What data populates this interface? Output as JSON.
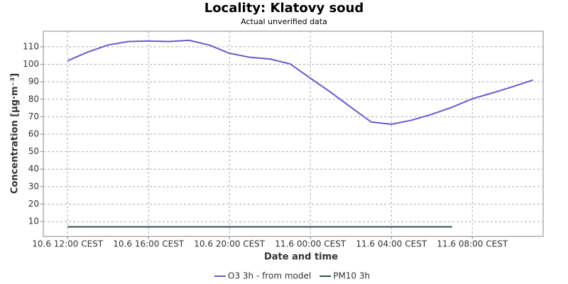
{
  "chart_data": {
    "type": "line",
    "title": "Locality: Klatovy soud",
    "subtitle": "Actual unverified data",
    "x_label": "Date and time",
    "y_label": "Concentration [µg·m⁻³]",
    "x": [
      0,
      1,
      2,
      3,
      4,
      5,
      6,
      7,
      8,
      9,
      10,
      11,
      12,
      13,
      14,
      15,
      16,
      17,
      18,
      19,
      20,
      21,
      22,
      23
    ],
    "xlim": [
      -1.2,
      23.5
    ],
    "xticks": [
      {
        "value": 0,
        "label": "10.6 12:00 CEST"
      },
      {
        "value": 4,
        "label": "10.6 16:00 CEST"
      },
      {
        "value": 8,
        "label": "10.6 20:00 CEST"
      },
      {
        "value": 12,
        "label": "11.6 00:00 CEST"
      },
      {
        "value": 16,
        "label": "11.6 04:00 CEST"
      },
      {
        "value": 20,
        "label": "11.6 08:00 CEST"
      }
    ],
    "ylim": [
      1.5,
      118.9
    ],
    "yticks": [
      10,
      20,
      30,
      40,
      50,
      60,
      70,
      80,
      90,
      100,
      110
    ],
    "grid": true,
    "legend": "bottom",
    "series": [
      {
        "name": "O3 3h - from model",
        "color": "#6a5acd",
        "values": [
          102,
          107,
          111,
          113,
          113.3,
          113,
          113.7,
          111,
          106.3,
          104,
          103,
          100.2,
          92,
          84,
          75.4,
          67,
          65.7,
          68,
          71.4,
          75.4,
          80.3,
          83.6,
          87.2,
          91
        ]
      },
      {
        "name": "PM10 3h",
        "color": "#2f4f4f",
        "values": [
          7,
          7,
          7,
          7,
          7,
          7,
          7,
          7,
          7,
          7,
          7,
          7,
          7,
          7,
          7,
          7,
          7,
          7,
          7,
          7,
          null,
          null,
          null,
          null
        ]
      }
    ]
  }
}
